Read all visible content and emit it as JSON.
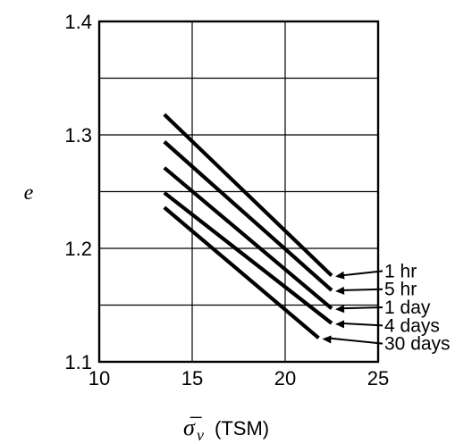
{
  "chart_data": {
    "type": "line",
    "title": "",
    "xlabel": "σ̅ᵥ (TSM)",
    "xlabel_symbol": "σ̅",
    "xlabel_subscript": "v",
    "xlabel_unit": "(TSM)",
    "ylabel": "e",
    "xlim": [
      10,
      25
    ],
    "ylim": [
      1.1,
      1.4
    ],
    "x_ticks": [
      10,
      15,
      20,
      25
    ],
    "x_tick_labels": [
      "10",
      "15",
      "20",
      "25"
    ],
    "y_ticks": [
      1.1,
      1.2,
      1.3,
      1.4
    ],
    "y_tick_labels": [
      "1.1",
      "1.2",
      "1.3",
      "1.4"
    ],
    "grid": true,
    "legend": "arrow labels at right",
    "series": [
      {
        "name": "1 hr",
        "x": [
          13.5,
          22.5
        ],
        "y": [
          1.318,
          1.176
        ]
      },
      {
        "name": "5 hr",
        "x": [
          13.5,
          22.5
        ],
        "y": [
          1.294,
          1.163
        ]
      },
      {
        "name": "1 day",
        "x": [
          13.5,
          22.5
        ],
        "y": [
          1.271,
          1.147
        ]
      },
      {
        "name": "4 days",
        "x": [
          13.5,
          22.5
        ],
        "y": [
          1.249,
          1.134
        ]
      },
      {
        "name": "30 days",
        "x": [
          13.5,
          21.8
        ],
        "y": [
          1.236,
          1.121
        ]
      }
    ],
    "label_values": {
      "1 hr": 1.18,
      "5 hr": 1.164,
      "1 day": 1.148,
      "4 days": 1.132,
      "30 days": 1.116
    },
    "colors": {
      "line": "#000000",
      "grid": "#000000",
      "background": "#ffffff"
    }
  }
}
